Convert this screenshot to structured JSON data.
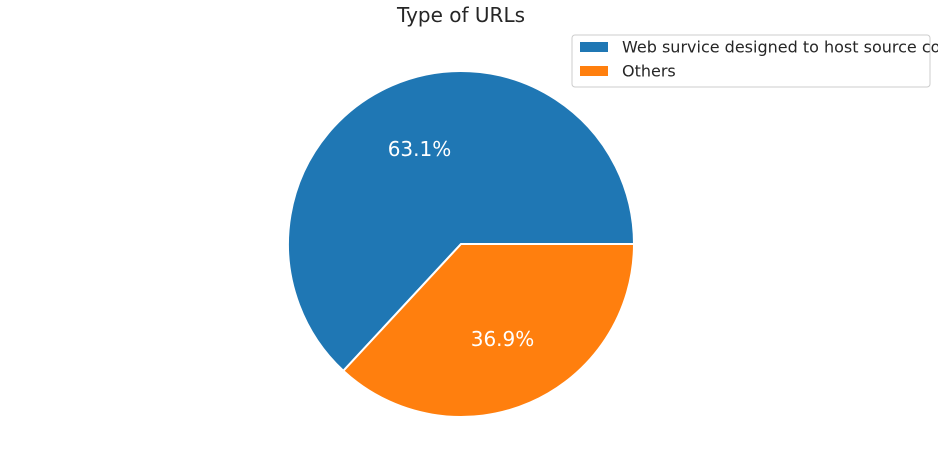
{
  "chart_data": {
    "type": "pie",
    "title": "Type of URLs",
    "categories": [
      "Web survice designed to host source code",
      "Others"
    ],
    "values": [
      63.1,
      36.9
    ],
    "value_labels": [
      "63.1%",
      "36.9%"
    ],
    "colors": [
      "#1f77b4",
      "#ff7f0e"
    ],
    "start_angle_deg": 0,
    "direction": "counterclockwise",
    "legend_position": "top-right",
    "grid": false
  }
}
